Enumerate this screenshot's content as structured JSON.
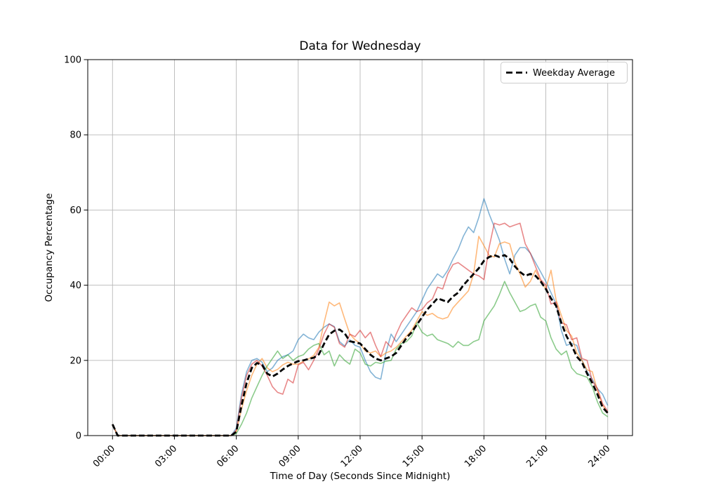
{
  "chart_data": {
    "type": "line",
    "title": "Data for Wednesday",
    "xlabel": "Time of Day (Seconds Since Midnight)",
    "ylabel": "Occupancy Percentage",
    "grid": true,
    "xlim_hours": [
      -1.2,
      25.2
    ],
    "ylim": [
      0,
      100
    ],
    "y_ticks": [
      0,
      20,
      40,
      60,
      80,
      100
    ],
    "x_tick_hours": [
      0,
      3,
      6,
      9,
      12,
      15,
      18,
      21,
      24
    ],
    "x_tick_labels": [
      "00:00",
      "03:00",
      "06:00",
      "09:00",
      "12:00",
      "15:00",
      "18:00",
      "21:00",
      "24:00"
    ],
    "x_start_hour": 0,
    "x_step_hours": 0.25,
    "legend": {
      "label": "Weekday Average",
      "position": "upper right"
    },
    "series": [
      {
        "color": "#1f77b4",
        "alpha": 0.55,
        "values": [
          3,
          0,
          0,
          0,
          0,
          0,
          0,
          0,
          0,
          0,
          0,
          0,
          0,
          0,
          0,
          0,
          0,
          0,
          0,
          0,
          0,
          0,
          0,
          0,
          2,
          11,
          17,
          20,
          20.5,
          19.5,
          17,
          18,
          20,
          21,
          21.5,
          22.5,
          25.5,
          27,
          26,
          25.5,
          27.5,
          28.8,
          29.7,
          29,
          25,
          23.8,
          25.5,
          24,
          23.5,
          20,
          17,
          15.5,
          15,
          22,
          27,
          25,
          27,
          29,
          31,
          33,
          36,
          39,
          41,
          43,
          42,
          44,
          47,
          49.5,
          53,
          55.5,
          54,
          58,
          63,
          59,
          55.5,
          52,
          47,
          43,
          48,
          50,
          50,
          48.5,
          46,
          43.5,
          41,
          38,
          35,
          28,
          24,
          24.5,
          24,
          20,
          17,
          15,
          12.5,
          11,
          8
        ]
      },
      {
        "color": "#ff7f0e",
        "alpha": 0.55,
        "values": [
          3,
          0,
          0,
          0,
          0,
          0,
          0,
          0,
          0,
          0,
          0,
          0,
          0,
          0,
          0,
          0,
          0,
          0,
          0,
          0,
          0,
          0,
          0,
          0,
          1,
          7,
          12,
          16,
          19,
          20.5,
          18,
          17,
          17.6,
          18.8,
          19.5,
          19,
          19,
          19.8,
          20.4,
          21.3,
          23.5,
          30,
          35.5,
          34.5,
          35.3,
          31,
          27,
          25.5,
          24.5,
          22.5,
          22,
          22.5,
          21,
          22,
          22.5,
          23.5,
          25,
          26.5,
          28,
          30.5,
          33,
          32,
          32.5,
          31.5,
          31,
          31.5,
          34,
          35.5,
          37,
          38.5,
          43,
          53,
          50.5,
          48,
          47.5,
          51,
          51.5,
          51,
          46,
          43,
          39.5,
          41,
          44,
          41,
          39,
          44,
          36,
          32,
          28,
          26.5,
          22,
          20,
          17.5,
          17,
          12,
          8,
          6
        ]
      },
      {
        "color": "#2ca02c",
        "alpha": 0.55,
        "values": [
          3,
          0,
          0,
          0,
          0,
          0,
          0,
          0,
          0,
          0,
          0,
          0,
          0,
          0,
          0,
          0,
          0,
          0,
          0,
          0,
          0,
          0,
          0,
          0,
          0.5,
          3,
          6,
          10,
          13,
          16,
          18.5,
          20.5,
          22.5,
          20.5,
          21.5,
          20,
          21,
          21.5,
          23,
          24,
          24.5,
          21.5,
          22.5,
          18.5,
          21.5,
          20,
          19,
          23,
          22,
          19,
          18.5,
          19.5,
          19.2,
          19.8,
          20,
          23,
          24.5,
          25,
          26.5,
          30,
          27.5,
          26.5,
          27,
          25.5,
          25,
          24.5,
          23.5,
          25,
          24,
          24,
          25,
          25.5,
          30.5,
          32.5,
          34.5,
          37.5,
          41,
          38,
          35.5,
          33,
          33.5,
          34.5,
          35,
          31.5,
          30.5,
          26,
          23,
          21.5,
          22.5,
          18,
          16.5,
          16,
          15.5,
          13,
          9,
          6,
          5
        ]
      },
      {
        "color": "#d62728",
        "alpha": 0.55,
        "values": [
          3,
          0,
          0,
          0,
          0,
          0,
          0,
          0,
          0,
          0,
          0,
          0,
          0,
          0,
          0,
          0,
          0,
          0,
          0,
          0,
          0,
          0,
          0,
          0,
          1.5,
          10,
          16,
          19,
          20,
          18.5,
          16,
          13,
          11.5,
          11,
          15,
          14,
          18.8,
          19.5,
          17.5,
          20,
          23,
          27,
          29.7,
          28.8,
          24.5,
          23.5,
          27,
          26.3,
          28,
          26,
          27.5,
          24,
          21,
          25,
          23.5,
          27,
          30,
          32,
          34,
          33,
          33.5,
          35.3,
          36.3,
          39.5,
          39,
          43,
          45.5,
          46,
          45,
          44,
          43,
          42.5,
          41.5,
          50,
          56.5,
          56,
          56.5,
          55.5,
          56,
          56.5,
          51,
          48.5,
          45,
          41.5,
          40,
          35,
          35.5,
          30,
          29.5,
          25.5,
          26,
          20.5,
          20,
          14.5,
          12.5,
          8.5,
          6.5
        ]
      }
    ],
    "average_series": {
      "label": "Weekday Average",
      "color": "#000000",
      "linestyle": "dashed",
      "linewidth": 2.8,
      "values": [
        3,
        0,
        0,
        0,
        0,
        0,
        0,
        0,
        0,
        0,
        0,
        0,
        0,
        0,
        0,
        0,
        0,
        0,
        0,
        0,
        0,
        0,
        0,
        0,
        1,
        8,
        14,
        18,
        19.3,
        18.8,
        16.5,
        15.7,
        16.5,
        17.6,
        18.5,
        19.2,
        19.8,
        20,
        20.4,
        20.7,
        21.6,
        24.4,
        26.9,
        27.9,
        28.2,
        27.2,
        25.1,
        24.8,
        24.5,
        23,
        21.5,
        20.5,
        20,
        20.5,
        21,
        22,
        24,
        26,
        27.5,
        29.5,
        31.5,
        33.5,
        35,
        36.5,
        36,
        35.5,
        37,
        38,
        40,
        41.5,
        43,
        44.5,
        46.5,
        47.5,
        48,
        47.5,
        48,
        47,
        45,
        43.5,
        42.5,
        43,
        42.5,
        41,
        39,
        36.5,
        34.5,
        30,
        26.5,
        24,
        21,
        19.5,
        16.5,
        14,
        11,
        7.5,
        6
      ]
    },
    "style": {
      "grid_color": "#b8b8b8",
      "spine_color": "#000000",
      "legend_border": "#cccccc"
    }
  }
}
